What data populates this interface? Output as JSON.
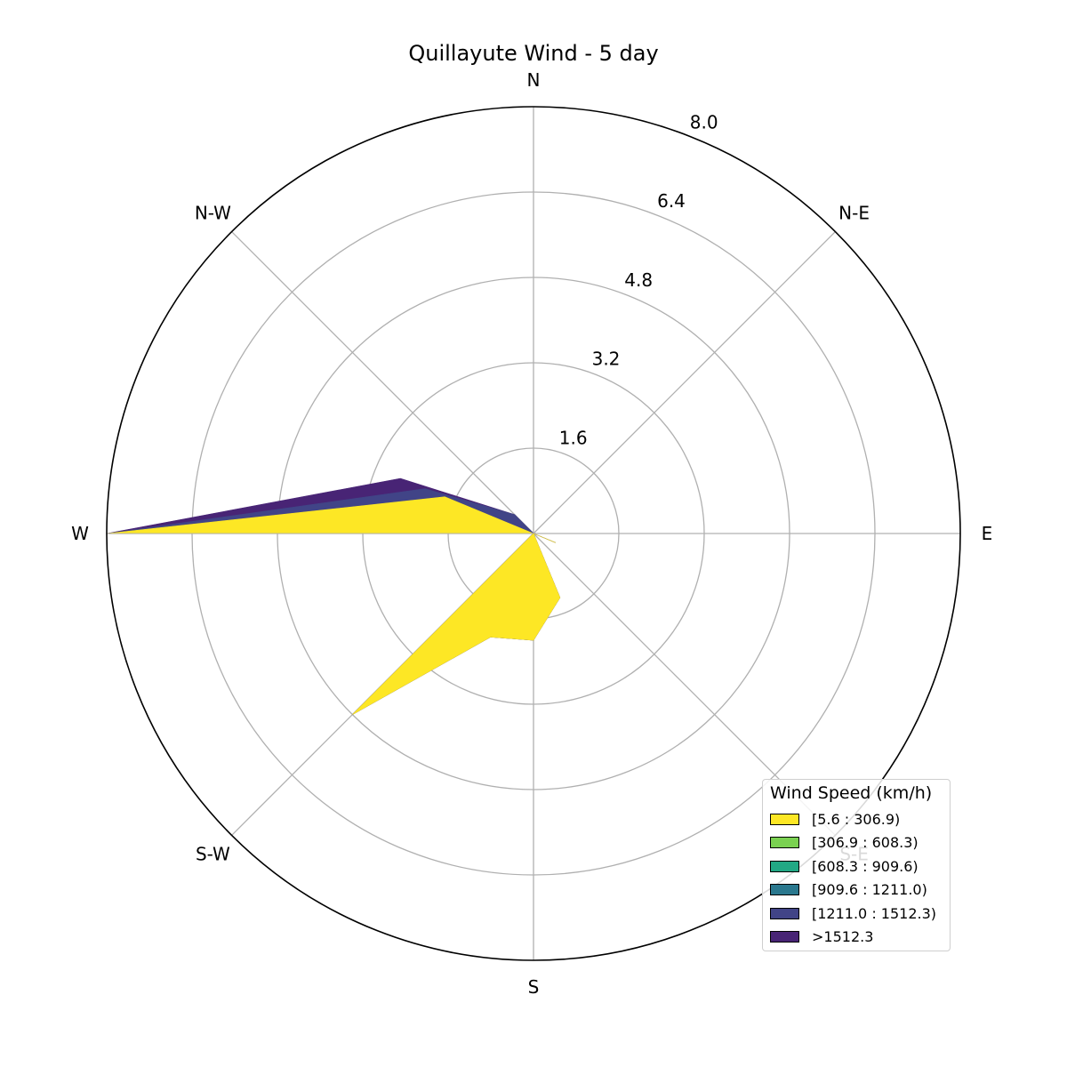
{
  "chart_data": {
    "type": "area",
    "title": "Quillayute Wind - 5 day",
    "directions": [
      "N",
      "N-E",
      "E",
      "S-E",
      "S",
      "S-W",
      "W",
      "N-W"
    ],
    "radial_ticks": [
      "1.6",
      "3.2",
      "4.8",
      "6.4",
      "8.0"
    ],
    "rmax": 8.0,
    "sector_angles_deg": [
      0,
      22.5,
      45,
      67.5,
      90,
      112.5,
      135,
      157.5,
      180,
      202.5,
      225,
      247.5,
      270,
      292.5,
      315,
      337.5
    ],
    "legend_title": "Wind Speed (km/h)",
    "series": [
      {
        "name": "[5.6 : 306.9)",
        "color": "#fde725",
        "values": [
          0,
          0,
          0,
          0,
          0,
          0.45,
          0,
          1.3,
          2.0,
          2.1,
          4.8,
          0,
          8.0,
          1.8,
          0,
          0
        ]
      },
      {
        "name": "[306.9 : 608.3)",
        "color": "#7ad151",
        "values": [
          0,
          0,
          0,
          0,
          0,
          0,
          0,
          0,
          0,
          0,
          0,
          0,
          0,
          0,
          0,
          0
        ]
      },
      {
        "name": "[608.3 : 909.6)",
        "color": "#22a884",
        "values": [
          0,
          0,
          0,
          0,
          0,
          0,
          0,
          0,
          0,
          0,
          0,
          0,
          0,
          0,
          0,
          0
        ]
      },
      {
        "name": "[909.6 : 1211.0)",
        "color": "#2a788e",
        "values": [
          0,
          0,
          0,
          0,
          0,
          0,
          0,
          0,
          0,
          0,
          0,
          0,
          0,
          0,
          0,
          0
        ]
      },
      {
        "name": "[1211.0 : 1512.3)",
        "color": "#414487",
        "values": [
          0,
          0,
          0,
          0,
          0,
          0,
          0,
          0,
          0,
          0,
          0,
          0,
          0,
          0.4,
          0.5,
          0
        ]
      },
      {
        "name": ">1512.3",
        "color": "#482475",
        "values": [
          0,
          0,
          0,
          0,
          0,
          0,
          0,
          0,
          0,
          0,
          0,
          0,
          0,
          0.5,
          0,
          0
        ]
      }
    ],
    "grid": true,
    "legend_position": "lower-right"
  }
}
